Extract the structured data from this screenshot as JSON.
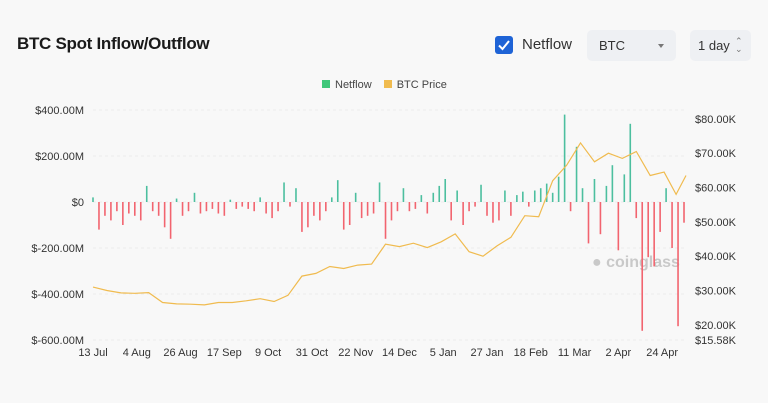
{
  "header": {
    "title": "BTC Spot Inflow/Outflow",
    "netflow_checkbox_label": "Netflow",
    "netflow_checked": true,
    "asset_select": "BTC",
    "period_select": "1 day"
  },
  "watermark": "coinglass",
  "colors": {
    "positive": "#4cbf9f",
    "negative": "#f2646f",
    "price": "#f0bb4f",
    "checkbox": "#1e63d6"
  },
  "chart_data": {
    "type": "bar+line",
    "title": "",
    "legend": {
      "placement": "top-center",
      "items": [
        "Netflow",
        "BTC Price"
      ]
    },
    "grid": true,
    "x_ticks": [
      "13 Jul",
      "4 Aug",
      "26 Aug",
      "17 Sep",
      "9 Oct",
      "31 Oct",
      "22 Nov",
      "14 Dec",
      "5 Jan",
      "27 Jan",
      "18 Feb",
      "11 Mar",
      "2 Apr",
      "24 Apr"
    ],
    "x_tick_dates": [
      "2023-07-13",
      "2023-08-04",
      "2023-08-26",
      "2023-09-17",
      "2023-10-09",
      "2023-10-31",
      "2023-11-22",
      "2023-12-14",
      "2024-01-05",
      "2024-01-27",
      "2024-02-18",
      "2024-03-11",
      "2024-04-02",
      "2024-04-24"
    ],
    "x_range": [
      "2023-07-13",
      "2024-05-06"
    ],
    "y_left": {
      "ticks": [
        "$400.00M",
        "$200.00M",
        "$0",
        "$-200.00M",
        "$-400.00M",
        "$-600.00M"
      ],
      "tick_values": [
        400,
        200,
        0,
        -200,
        -400,
        -600
      ],
      "range": [
        -600,
        400
      ],
      "unit": "USD millions"
    },
    "y_right": {
      "ticks": [
        "$80.00K",
        "$70.00K",
        "$60.00K",
        "$50.00K",
        "$40.00K",
        "$30.00K",
        "$20.00K",
        "$15.58K"
      ],
      "tick_values": [
        80,
        70,
        60,
        50,
        40,
        30,
        20,
        15.58
      ],
      "range": [
        15.58,
        82.6
      ],
      "unit": "USD thousands"
    },
    "series": [
      {
        "name": "Netflow",
        "type": "bar",
        "axis": "left",
        "points": [
          [
            "2023-07-13",
            20
          ],
          [
            "2023-07-16",
            -120
          ],
          [
            "2023-07-19",
            -60
          ],
          [
            "2023-07-22",
            -80
          ],
          [
            "2023-07-25",
            -40
          ],
          [
            "2023-07-28",
            -100
          ],
          [
            "2023-07-31",
            -50
          ],
          [
            "2023-08-03",
            -60
          ],
          [
            "2023-08-06",
            -80
          ],
          [
            "2023-08-09",
            70
          ],
          [
            "2023-08-12",
            -40
          ],
          [
            "2023-08-15",
            -60
          ],
          [
            "2023-08-18",
            -110
          ],
          [
            "2023-08-21",
            -160
          ],
          [
            "2023-08-24",
            15
          ],
          [
            "2023-08-27",
            -60
          ],
          [
            "2023-08-30",
            -40
          ],
          [
            "2023-09-02",
            40
          ],
          [
            "2023-09-05",
            -50
          ],
          [
            "2023-09-08",
            -40
          ],
          [
            "2023-09-11",
            -30
          ],
          [
            "2023-09-14",
            -50
          ],
          [
            "2023-09-17",
            -60
          ],
          [
            "2023-09-20",
            10
          ],
          [
            "2023-09-23",
            -30
          ],
          [
            "2023-09-26",
            -20
          ],
          [
            "2023-09-29",
            -30
          ],
          [
            "2023-10-02",
            -40
          ],
          [
            "2023-10-05",
            20
          ],
          [
            "2023-10-08",
            -50
          ],
          [
            "2023-10-11",
            -70
          ],
          [
            "2023-10-14",
            -40
          ],
          [
            "2023-10-17",
            85
          ],
          [
            "2023-10-20",
            -20
          ],
          [
            "2023-10-23",
            60
          ],
          [
            "2023-10-26",
            -130
          ],
          [
            "2023-10-29",
            -110
          ],
          [
            "2023-11-01",
            -60
          ],
          [
            "2023-11-04",
            -80
          ],
          [
            "2023-11-07",
            -40
          ],
          [
            "2023-11-10",
            20
          ],
          [
            "2023-11-13",
            95
          ],
          [
            "2023-11-16",
            -120
          ],
          [
            "2023-11-19",
            -100
          ],
          [
            "2023-11-22",
            40
          ],
          [
            "2023-11-25",
            -70
          ],
          [
            "2023-11-28",
            -60
          ],
          [
            "2023-12-01",
            -50
          ],
          [
            "2023-12-04",
            85
          ],
          [
            "2023-12-07",
            -160
          ],
          [
            "2023-12-10",
            -80
          ],
          [
            "2023-12-13",
            -40
          ],
          [
            "2023-12-16",
            60
          ],
          [
            "2023-12-19",
            -40
          ],
          [
            "2023-12-22",
            -30
          ],
          [
            "2023-12-25",
            30
          ],
          [
            "2023-12-28",
            -50
          ],
          [
            "2023-12-31",
            40
          ],
          [
            "2024-01-03",
            70
          ],
          [
            "2024-01-06",
            100
          ],
          [
            "2024-01-09",
            -80
          ],
          [
            "2024-01-12",
            50
          ],
          [
            "2024-01-15",
            -100
          ],
          [
            "2024-01-18",
            -40
          ],
          [
            "2024-01-21",
            -20
          ],
          [
            "2024-01-24",
            75
          ],
          [
            "2024-01-27",
            -60
          ],
          [
            "2024-01-30",
            -90
          ],
          [
            "2024-02-02",
            -80
          ],
          [
            "2024-02-05",
            50
          ],
          [
            "2024-02-08",
            -60
          ],
          [
            "2024-02-11",
            30
          ],
          [
            "2024-02-14",
            45
          ],
          [
            "2024-02-17",
            -20
          ],
          [
            "2024-02-20",
            50
          ],
          [
            "2024-02-23",
            60
          ],
          [
            "2024-02-26",
            80
          ],
          [
            "2024-02-29",
            40
          ],
          [
            "2024-03-03",
            110
          ],
          [
            "2024-03-06",
            380
          ],
          [
            "2024-03-09",
            -40
          ],
          [
            "2024-03-12",
            240
          ],
          [
            "2024-03-15",
            60
          ],
          [
            "2024-03-18",
            -180
          ],
          [
            "2024-03-21",
            100
          ],
          [
            "2024-03-24",
            -140
          ],
          [
            "2024-03-27",
            70
          ],
          [
            "2024-03-30",
            160
          ],
          [
            "2024-04-02",
            -210
          ],
          [
            "2024-04-05",
            120
          ],
          [
            "2024-04-08",
            340
          ],
          [
            "2024-04-11",
            -70
          ],
          [
            "2024-04-14",
            -560
          ],
          [
            "2024-04-17",
            -240
          ],
          [
            "2024-04-20",
            -280
          ],
          [
            "2024-04-23",
            -130
          ],
          [
            "2024-04-26",
            60
          ],
          [
            "2024-04-29",
            -200
          ],
          [
            "2024-05-02",
            -540
          ],
          [
            "2024-05-05",
            -90
          ]
        ]
      },
      {
        "name": "BTC Price",
        "type": "line",
        "axis": "right",
        "points": [
          [
            "2023-07-13",
            31
          ],
          [
            "2023-07-20",
            30
          ],
          [
            "2023-07-27",
            29.3
          ],
          [
            "2023-08-03",
            29.2
          ],
          [
            "2023-08-10",
            29.4
          ],
          [
            "2023-08-17",
            26.5
          ],
          [
            "2023-08-24",
            26.1
          ],
          [
            "2023-08-31",
            26
          ],
          [
            "2023-09-07",
            25.8
          ],
          [
            "2023-09-14",
            26.5
          ],
          [
            "2023-09-21",
            26.5
          ],
          [
            "2023-09-28",
            27
          ],
          [
            "2023-10-05",
            27.6
          ],
          [
            "2023-10-12",
            26.8
          ],
          [
            "2023-10-19",
            28.6
          ],
          [
            "2023-10-26",
            34.2
          ],
          [
            "2023-11-02",
            35
          ],
          [
            "2023-11-09",
            37
          ],
          [
            "2023-11-16",
            36.4
          ],
          [
            "2023-11-23",
            37.4
          ],
          [
            "2023-11-30",
            37.7
          ],
          [
            "2023-12-07",
            43.5
          ],
          [
            "2023-12-14",
            42.8
          ],
          [
            "2023-12-21",
            43.8
          ],
          [
            "2023-12-28",
            42.5
          ],
          [
            "2024-01-04",
            44.2
          ],
          [
            "2024-01-11",
            46.5
          ],
          [
            "2024-01-18",
            41.3
          ],
          [
            "2024-01-25",
            40
          ],
          [
            "2024-02-01",
            43
          ],
          [
            "2024-02-08",
            45.5
          ],
          [
            "2024-02-15",
            51.8
          ],
          [
            "2024-02-22",
            51.5
          ],
          [
            "2024-02-29",
            62
          ],
          [
            "2024-03-07",
            66.5
          ],
          [
            "2024-03-14",
            73
          ],
          [
            "2024-03-21",
            67.5
          ],
          [
            "2024-03-28",
            70
          ],
          [
            "2024-04-04",
            68.5
          ],
          [
            "2024-04-11",
            70.5
          ],
          [
            "2024-04-18",
            63.5
          ],
          [
            "2024-04-25",
            64.5
          ],
          [
            "2024-05-01",
            58
          ],
          [
            "2024-05-06",
            63.5
          ]
        ]
      }
    ]
  }
}
